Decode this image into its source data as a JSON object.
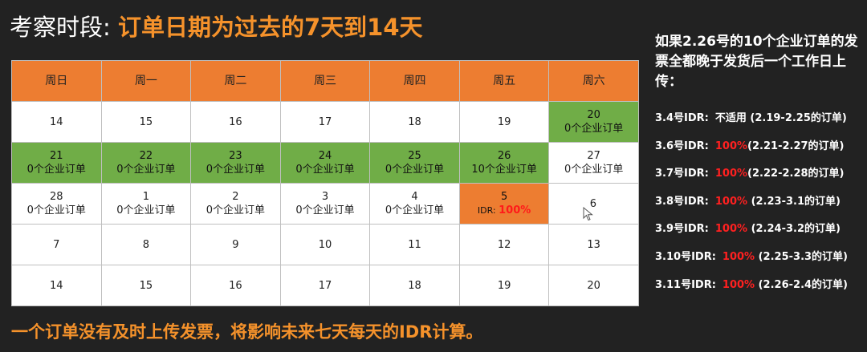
{
  "title": {
    "prefix": "考察时段: ",
    "highlight": "订单日期为过去的7天到14天"
  },
  "calendar": {
    "headers": [
      "周日",
      "周一",
      "周二",
      "周三",
      "周四",
      "周五",
      "周六"
    ],
    "rows": [
      [
        {
          "day": "14",
          "note": "",
          "style": "plain"
        },
        {
          "day": "15",
          "note": "",
          "style": "plain"
        },
        {
          "day": "16",
          "note": "",
          "style": "plain"
        },
        {
          "day": "17",
          "note": "",
          "style": "plain"
        },
        {
          "day": "18",
          "note": "",
          "style": "plain"
        },
        {
          "day": "19",
          "note": "",
          "style": "plain"
        },
        {
          "day": "20",
          "note": "0个企业订单",
          "style": "green"
        }
      ],
      [
        {
          "day": "21",
          "note": "0个企业订单",
          "style": "green"
        },
        {
          "day": "22",
          "note": "0个企业订单",
          "style": "green"
        },
        {
          "day": "23",
          "note": "0个企业订单",
          "style": "green"
        },
        {
          "day": "24",
          "note": "0个企业订单",
          "style": "green"
        },
        {
          "day": "25",
          "note": "0个企业订单",
          "style": "green"
        },
        {
          "day": "26",
          "note": "10个企业订单",
          "style": "green"
        },
        {
          "day": "27",
          "note": "0个企业订单",
          "style": "plain"
        }
      ],
      [
        {
          "day": "28",
          "note": "0个企业订单",
          "style": "plain"
        },
        {
          "day": "1",
          "note": "0个企业订单",
          "style": "plain"
        },
        {
          "day": "2",
          "note": "0个企业订单",
          "style": "plain"
        },
        {
          "day": "3",
          "note": "0个企业订单",
          "style": "plain"
        },
        {
          "day": "4",
          "note": "0个企业订单",
          "style": "plain"
        },
        {
          "day": "5",
          "note": "",
          "style": "orange",
          "idr_label": "IDR: ",
          "idr_value": "100%"
        },
        {
          "day": "6",
          "note": "",
          "style": "plain"
        }
      ],
      [
        {
          "day": "7",
          "note": "",
          "style": "plain"
        },
        {
          "day": "8",
          "note": "",
          "style": "plain"
        },
        {
          "day": "9",
          "note": "",
          "style": "plain"
        },
        {
          "day": "10",
          "note": "",
          "style": "plain"
        },
        {
          "day": "11",
          "note": "",
          "style": "plain"
        },
        {
          "day": "12",
          "note": "",
          "style": "plain"
        },
        {
          "day": "13",
          "note": "",
          "style": "plain"
        }
      ],
      [
        {
          "day": "14",
          "note": "",
          "style": "plain"
        },
        {
          "day": "15",
          "note": "",
          "style": "plain"
        },
        {
          "day": "16",
          "note": "",
          "style": "plain"
        },
        {
          "day": "17",
          "note": "",
          "style": "plain"
        },
        {
          "day": "18",
          "note": "",
          "style": "plain"
        },
        {
          "day": "19",
          "note": "",
          "style": "plain"
        },
        {
          "day": "20",
          "note": "",
          "style": "plain"
        }
      ]
    ]
  },
  "side_panel": {
    "heading": "如果2.26号的10个企业订单的发票全都晚于发货后一个工作日上传：",
    "items": [
      {
        "day": "3.4号IDR:",
        "value": "",
        "range": "不适用 (2.19-2.25的订单)"
      },
      {
        "day": "3.6号IDR:",
        "value": "100%",
        "range": "(2.21-2.27的订单)"
      },
      {
        "day": "3.7号IDR:",
        "value": "100%",
        "range": "(2.22-2.28的订单)"
      },
      {
        "day": "3.8号IDR:",
        "value": "100%",
        "range": " (2.23-3.1的订单)"
      },
      {
        "day": "3.9号IDR:",
        "value": "100%",
        "range": " (2.24-3.2的订单)"
      },
      {
        "day": "3.10号IDR:",
        "value": "100%",
        "range": " (2.25-3.3的订单)"
      },
      {
        "day": "3.11号IDR:",
        "value": "100%",
        "range": " (2.26-2.4的订单)"
      }
    ]
  },
  "footer": "一个订单没有及时上传发票，将影响未来七天每天的IDR计算。",
  "colors": {
    "header_orange": "#ed7d31",
    "green": "#70ad47",
    "accent_text": "#f5922b",
    "red": "#ff2020",
    "background": "#222222"
  },
  "icons": {
    "cursor": "mouse-pointer-icon"
  }
}
